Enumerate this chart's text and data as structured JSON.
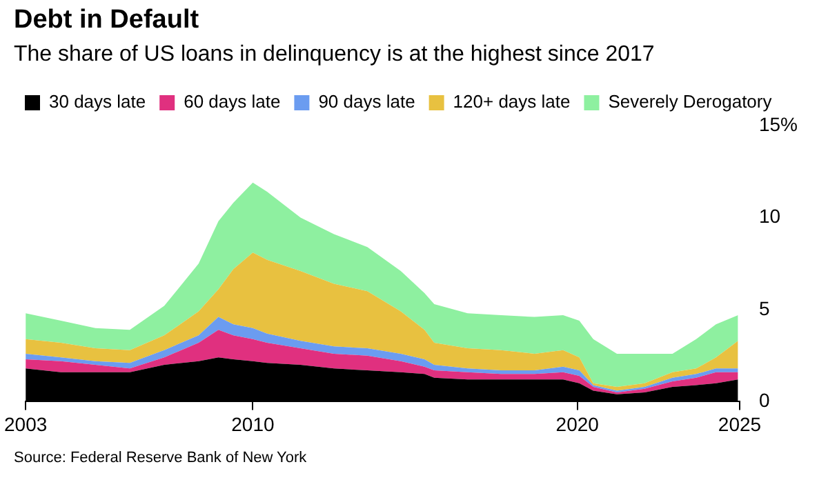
{
  "chart_data": {
    "type": "area",
    "stacked": true,
    "title": "Debt in Default",
    "subtitle": "The share of US loans in delinquency is at the highest since 2017",
    "x": [
      2003,
      2004.09,
      2005.15,
      2006.21,
      2007.27,
      2008.33,
      2008.94,
      2009.4,
      2010,
      2010.44,
      2011.47,
      2012.5,
      2013.53,
      2014.56,
      2015.29,
      2015.59,
      2016.62,
      2017.65,
      2018.68,
      2019.56,
      2020.06,
      2020.49,
      2021.22,
      2022.07,
      2022.93,
      2023.66,
      2024.27,
      2024.95
    ],
    "series": [
      {
        "name": "30 days late",
        "color": "#000000",
        "values": [
          1.8,
          1.6,
          1.6,
          1.6,
          2.0,
          2.2,
          2.4,
          2.3,
          2.2,
          2.1,
          2.0,
          1.8,
          1.7,
          1.6,
          1.5,
          1.3,
          1.2,
          1.2,
          1.2,
          1.2,
          1.0,
          0.6,
          0.4,
          0.5,
          0.8,
          0.9,
          1.0,
          1.2
        ]
      },
      {
        "name": "60 days late",
        "color": "#e0307f",
        "values": [
          0.5,
          0.6,
          0.4,
          0.2,
          0.4,
          1.0,
          1.5,
          1.3,
          1.2,
          1.1,
          0.9,
          0.8,
          0.8,
          0.6,
          0.4,
          0.4,
          0.4,
          0.3,
          0.3,
          0.4,
          0.4,
          0.2,
          0.1,
          0.2,
          0.3,
          0.4,
          0.6,
          0.4
        ]
      },
      {
        "name": "90 days late",
        "color": "#6b9cf0",
        "values": [
          0.3,
          0.2,
          0.2,
          0.3,
          0.4,
          0.4,
          0.7,
          0.6,
          0.6,
          0.5,
          0.4,
          0.4,
          0.4,
          0.4,
          0.4,
          0.3,
          0.2,
          0.2,
          0.2,
          0.3,
          0.3,
          0.1,
          0.1,
          0.1,
          0.2,
          0.2,
          0.2,
          0.2
        ]
      },
      {
        "name": "120+ days late",
        "color": "#e8c140",
        "values": [
          0.8,
          0.8,
          0.7,
          0.7,
          0.8,
          1.3,
          1.5,
          3.0,
          4.1,
          4.0,
          3.8,
          3.4,
          3.1,
          2.3,
          1.6,
          1.2,
          1.1,
          1.1,
          0.9,
          0.9,
          0.7,
          0.1,
          0.2,
          0.2,
          0.3,
          0.3,
          0.6,
          1.5
        ]
      },
      {
        "name": "Severely Derogatory",
        "color": "#8ef0a0",
        "values": [
          1.4,
          1.2,
          1.1,
          1.1,
          1.6,
          2.6,
          3.7,
          3.6,
          3.8,
          3.7,
          2.9,
          2.7,
          2.4,
          2.2,
          2.0,
          2.1,
          1.9,
          1.9,
          2.0,
          1.9,
          2.0,
          2.4,
          1.8,
          1.6,
          1.0,
          1.6,
          1.8,
          1.4
        ]
      }
    ],
    "xlim": [
      2003,
      2025
    ],
    "xticks": [
      2003,
      2010,
      2020,
      2025
    ],
    "ylim": [
      0,
      15
    ],
    "yticks": [
      0,
      5,
      10,
      {
        "value": 15,
        "label": "15%"
      }
    ],
    "legend": "top left",
    "marker": "none",
    "annotations": [
      "Source: Federal Reserve Bank of New York"
    ]
  }
}
